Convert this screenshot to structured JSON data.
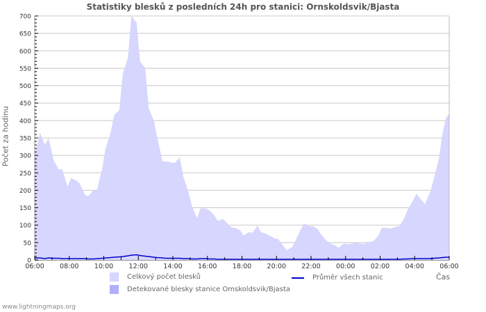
{
  "header": {
    "title": "Statistiky blesků z posledních 24h pro stanici: Ornskoldsvik/Bjasta"
  },
  "axes": {
    "ylabel": "Počet za hodinu",
    "xlabel": "Čas"
  },
  "legend": {
    "total": "Celkový počet blesků",
    "detected": "Detekované blesky stanice Omskoldsvik/Bjasta",
    "average": "Průměr všech stanic"
  },
  "footer": {
    "source": "www.lightningmaps.org"
  },
  "colors": {
    "total_fill": "#d6d6fe",
    "detected_fill": "#b0b0fa",
    "average_line": "#0000cc",
    "grid": "#c8c8c8"
  },
  "chart_data": {
    "type": "area",
    "title": "Statistiky blesků z posledních 24h pro stanici: Ornskoldsvik/Bjasta",
    "xlabel": "Čas",
    "ylabel": "Počet za hodinu",
    "ylim": [
      0,
      700
    ],
    "yticks": [
      0,
      50,
      100,
      150,
      200,
      250,
      300,
      350,
      400,
      450,
      500,
      550,
      600,
      650,
      700
    ],
    "xticks": [
      "06:00",
      "08:00",
      "10:00",
      "12:00",
      "14:00",
      "16:00",
      "18:00",
      "20:00",
      "22:00",
      "00:00",
      "02:00",
      "04:00",
      "06:00"
    ],
    "grid": true,
    "legend_position": "bottom",
    "x_hours": [
      0,
      0.3,
      0.6,
      0.8,
      1.1,
      1.4,
      1.6,
      1.9,
      2.1,
      2.4,
      2.6,
      2.9,
      3.1,
      3.4,
      3.6,
      3.9,
      4.1,
      4.4,
      4.6,
      4.9,
      5.1,
      5.4,
      5.6,
      5.9,
      6.1,
      6.4,
      6.6,
      6.9,
      7.1,
      7.4,
      7.6,
      7.9,
      8.1,
      8.4,
      8.6,
      8.9,
      9.1,
      9.4,
      9.6,
      9.9,
      10.1,
      10.4,
      10.6,
      10.9,
      11.1,
      11.4,
      11.6,
      11.9,
      12.1,
      12.4,
      12.6,
      12.9,
      13.1,
      13.4,
      13.6,
      13.9,
      14.1,
      14.4,
      14.6,
      14.9,
      15.1,
      15.4,
      15.6,
      15.9,
      16.1,
      16.4,
      16.6,
      16.9,
      17.1,
      17.4,
      17.6,
      17.9,
      18.1,
      18.4,
      18.6,
      18.9,
      19.1,
      19.4,
      19.6,
      19.9,
      20.1,
      20.4,
      20.6,
      20.9,
      21.1,
      21.4,
      21.6,
      21.9,
      22.1,
      22.4,
      22.6,
      22.9,
      23.1,
      23.4,
      23.6,
      23.8,
      24
    ],
    "series": [
      {
        "name": "Celkový počet blesků",
        "values": [
          300,
          365,
          330,
          350,
          285,
          260,
          260,
          210,
          235,
          228,
          220,
          188,
          183,
          200,
          200,
          260,
          320,
          365,
          415,
          430,
          535,
          580,
          700,
          680,
          570,
          550,
          435,
          400,
          350,
          283,
          283,
          280,
          278,
          295,
          240,
          195,
          155,
          120,
          148,
          148,
          143,
          128,
          112,
          118,
          108,
          93,
          92,
          85,
          70,
          80,
          78,
          98,
          80,
          75,
          70,
          62,
          60,
          40,
          28,
          37,
          55,
          88,
          105,
          97,
          97,
          88,
          72,
          55,
          48,
          42,
          35,
          48,
          45,
          47,
          50,
          47,
          47,
          52,
          53,
          70,
          92,
          92,
          90,
          95,
          97,
          120,
          145,
          170,
          190,
          172,
          160,
          195,
          230,
          290,
          360,
          405,
          420
        ]
      },
      {
        "name": "Detekované blesky stanice Omskoldsvik/Bjasta",
        "values": [
          0,
          0,
          0,
          0,
          0,
          0,
          0,
          0,
          0,
          0,
          0,
          0,
          0,
          0,
          0,
          0,
          0,
          0,
          0,
          0,
          0,
          0,
          0,
          0,
          0,
          0,
          0,
          0,
          0,
          0,
          0,
          0,
          0,
          0,
          0,
          0,
          0,
          0,
          0,
          0,
          0,
          0,
          0,
          0,
          0,
          0,
          0,
          0,
          0,
          0,
          0,
          0,
          0,
          0,
          0,
          0,
          0,
          0,
          0,
          0,
          0,
          0,
          0,
          0,
          0,
          0,
          0,
          0,
          0,
          0,
          0,
          0,
          0,
          0,
          0,
          0,
          0,
          0,
          0,
          0,
          0,
          0,
          0,
          0,
          0,
          0,
          0,
          0,
          0,
          0,
          0,
          0,
          0,
          0,
          0,
          0,
          0
        ]
      },
      {
        "name": "Průměr všech stanic",
        "type": "line",
        "values": [
          6,
          6,
          4,
          6,
          5,
          5,
          4,
          4,
          4,
          4,
          4,
          4,
          3,
          3,
          4,
          5,
          6,
          7,
          8,
          9,
          10,
          12,
          14,
          15,
          13,
          11,
          10,
          8,
          7,
          6,
          5,
          5,
          5,
          5,
          4,
          4,
          3,
          3,
          4,
          4,
          3,
          3,
          2,
          2,
          2,
          2,
          2,
          2,
          2,
          2,
          2,
          2,
          2,
          2,
          2,
          2,
          2,
          2,
          2,
          2,
          2,
          2,
          2,
          2,
          2,
          2,
          2,
          2,
          2,
          2,
          2,
          2,
          2,
          2,
          2,
          2,
          2,
          2,
          2,
          2,
          2,
          2,
          2,
          2,
          2,
          3,
          3,
          4,
          4,
          4,
          4,
          4,
          5,
          6,
          7,
          8,
          8
        ]
      }
    ]
  }
}
